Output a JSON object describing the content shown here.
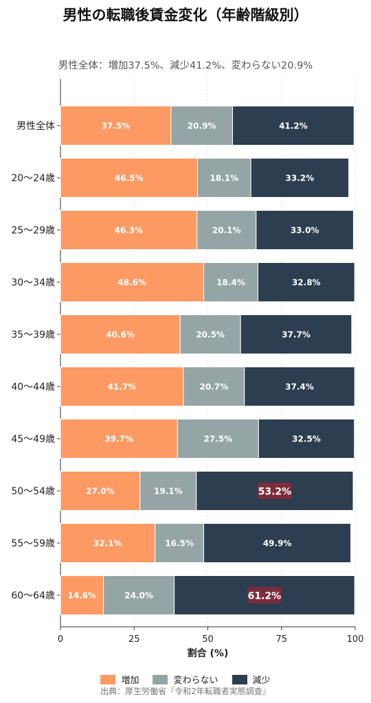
{
  "chart_data": {
    "type": "bar",
    "orientation": "horizontal",
    "stacked": true,
    "title": "男性の転職後賃金変化（年齢階級別）",
    "subtitle": "男性全体：増加37.5%、減少41.2%、変わらない20.9%",
    "xlabel": "割合 (%)",
    "ylabel": "",
    "xlim": [
      0,
      100
    ],
    "x_ticks": [
      "0",
      "25",
      "50",
      "75",
      "100"
    ],
    "grid": "vertical-dotted",
    "legend_position": "bottom",
    "categories": [
      "男性全体",
      "20〜24歳",
      "25〜29歳",
      "30〜34歳",
      "35〜39歳",
      "40〜44歳",
      "45〜49歳",
      "50〜54歳",
      "55〜59歳",
      "60〜64歳"
    ],
    "series": [
      {
        "name": "増加",
        "color": "#fd9a63",
        "values": [
          37.5,
          46.5,
          46.3,
          48.6,
          40.6,
          41.7,
          39.7,
          27.0,
          32.1,
          14.6
        ],
        "labels": [
          "37.5%",
          "46.5%",
          "46.3%",
          "48.6%",
          "40.6%",
          "41.7%",
          "39.7%",
          "27.0%",
          "32.1%",
          "14.6%"
        ]
      },
      {
        "name": "変わらない",
        "color": "#95a5a6",
        "values": [
          20.9,
          18.1,
          20.1,
          18.4,
          20.5,
          20.7,
          27.5,
          19.1,
          16.5,
          24.0
        ],
        "labels": [
          "20.9%",
          "18.1%",
          "20.1%",
          "18.4%",
          "20.5%",
          "20.7%",
          "27.5%",
          "19.1%",
          "16.5%",
          "24.0%"
        ]
      },
      {
        "name": "減少",
        "color": "#2c3e50",
        "values": [
          41.2,
          33.2,
          33.0,
          32.8,
          37.7,
          37.4,
          32.5,
          53.2,
          49.9,
          61.2
        ],
        "labels": [
          "41.2%",
          "33.2%",
          "33.0%",
          "32.8%",
          "37.7%",
          "37.4%",
          "32.5%",
          "53.2%",
          "49.9%",
          "61.2%"
        ]
      }
    ],
    "highlighted_labels": [
      "50〜54歳",
      "60〜64歳"
    ],
    "highlight_color": "#7b2d3b"
  },
  "source": "出典：厚生労働省『令和2年転職者実態調査』"
}
